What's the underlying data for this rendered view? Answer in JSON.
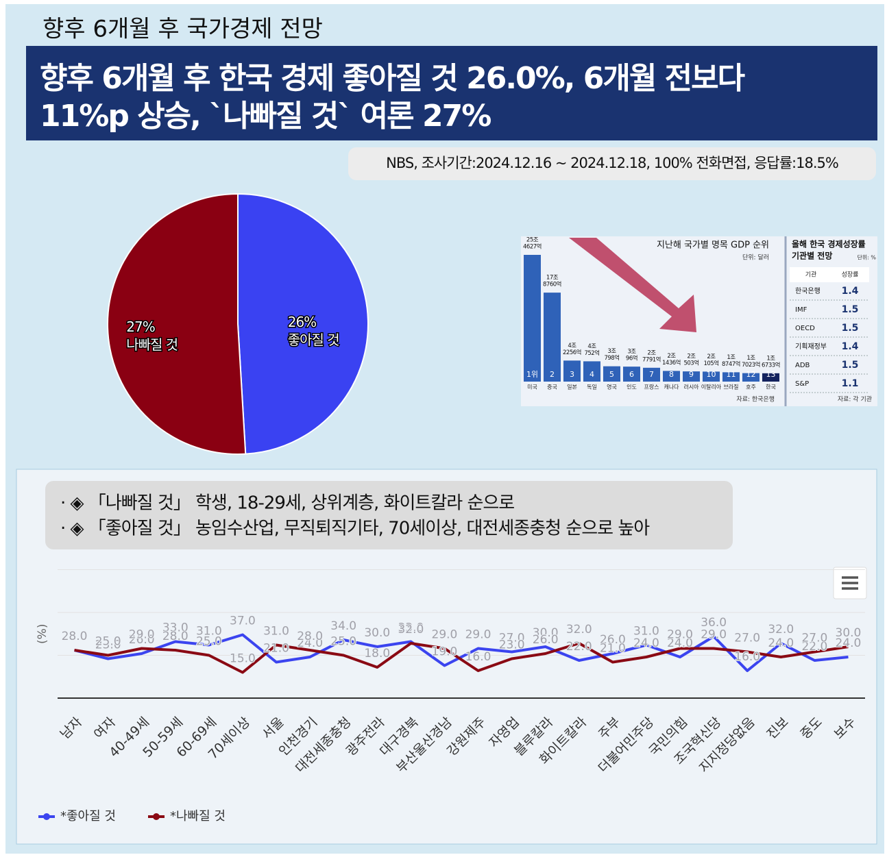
{
  "header": {
    "kicker": "향후 6개월 후 국가경제 전망",
    "headline": [
      "향후 6개월 후 한국 경제 좋아질 것 26.0%, 6개월 전보다",
      "11%p 상승, `나빠질 것` 여론 27%"
    ]
  },
  "source": "NBS, 조사기간:2024.12.16 ~ 2024.12.18, 100% 전화면접, 응답률:18.5%",
  "notes": [
    "· ◈ 「나빠질 것」 학생, 18-29세, 상위계층, 화이트칼라 순으로",
    "· ◈ 「좋아질 것」 농임수산업, 무직퇴직기타, 70세이상, 대전세종충청 순으로 높아"
  ],
  "chart_data": [
    {
      "type": "pie",
      "categories": [
        "좋아질 것",
        "나빠질 것"
      ],
      "values": [
        26,
        27
      ],
      "value_labels": [
        "26%",
        "27%"
      ],
      "colors": [
        "#3a42f2",
        "#8a0012"
      ]
    },
    {
      "type": "bar",
      "title": "지난해 국가별 명목 GDP 순위",
      "unit": "단위: 달러",
      "source": "자료: 한국은행",
      "categories": [
        "미국",
        "중국",
        "일본",
        "독일",
        "영국",
        "인도",
        "프랑스",
        "캐나다",
        "러시아",
        "이탈리아",
        "브라질",
        "호주",
        "한국"
      ],
      "ranks": [
        "1위",
        "2",
        "3",
        "4",
        "5",
        "6",
        "7",
        "8",
        "9",
        "10",
        "11",
        "12",
        "13"
      ],
      "values": [
        254627,
        178760,
        42256,
        40752,
        30798,
        30096,
        27791,
        21436,
        20503,
        20105,
        18747,
        17023,
        16733
      ],
      "value_labels": [
        [
          "25조",
          "4627억"
        ],
        [
          "17조",
          "8760억"
        ],
        [
          "4조",
          "2256억"
        ],
        [
          "4조",
          "752억"
        ],
        [
          "3조",
          "798억"
        ],
        [
          "3조",
          "96억"
        ],
        [
          "2조",
          "7791억"
        ],
        [
          "2조",
          "1436억"
        ],
        [
          "2조",
          "503억"
        ],
        [
          "2조",
          "105억"
        ],
        [
          "1조",
          "8747억"
        ],
        [
          "1조",
          "7023억"
        ],
        [
          "1조",
          "6733억"
        ]
      ],
      "colors": [
        "#2f62b8",
        "#2f62b8",
        "#2f62b8",
        "#2f62b8",
        "#2f62b8",
        "#2f62b8",
        "#2f62b8",
        "#2f62b8",
        "#2f62b8",
        "#2f62b8",
        "#2f62b8",
        "#2f62b8",
        "#14235e"
      ]
    },
    {
      "type": "line",
      "y_label": "(%)",
      "categories": [
        "남자",
        "여자",
        "40-49세",
        "50-59세",
        "60-69세",
        "70세이상",
        "서울",
        "인천경기",
        "대전세종충청",
        "광주전라",
        "대구경북",
        "부산울산경남",
        "강원제주",
        "자영업",
        "블루칼라",
        "화이트칼라",
        "주부",
        "더불어민주당",
        "국민의힘",
        "조국혁신당",
        "지지정당없음",
        "진보",
        "중도",
        "보수"
      ],
      "series": [
        {
          "name": "*좋아질 것",
          "color": "#3b44ef",
          "values": [
            28,
            23,
            26,
            33,
            31,
            37,
            21,
            24,
            34,
            30,
            33,
            19,
            29,
            27,
            30,
            22,
            26,
            31,
            24,
            36,
            16,
            32,
            22,
            24
          ],
          "value_labels": [
            "28.0",
            "23.0",
            "26.0",
            "33.0",
            "31.0",
            "37.0",
            "21.0",
            "24.0",
            "34.0",
            "30.0",
            "33.0",
            "19.0",
            "29.0",
            "27.0",
            "30.0",
            "22.0",
            "26.0",
            "31.0",
            "24.0",
            "36.0",
            "16.0",
            "32.0",
            "22.0",
            "24.0"
          ]
        },
        {
          "name": "*나빠질 것",
          "color": "#8a0a14",
          "values": [
            28,
            25,
            29,
            28,
            25,
            15,
            31,
            28,
            25,
            18,
            32,
            29,
            16,
            23,
            26,
            32,
            21,
            24,
            29,
            29,
            27,
            24,
            27,
            30
          ],
          "value_labels": [
            "28.0",
            "25.0",
            "29.0",
            "28.0",
            "25.0",
            "15.0",
            "31.0",
            "28.0",
            "25.0",
            "18.0",
            "32.0",
            "29.0",
            "16.0",
            "23.0",
            "26.0",
            "32.0",
            "21.0",
            "24.0",
            "29.0",
            "29.0",
            "27.0",
            "24.0",
            "27.0",
            "30.0"
          ]
        }
      ],
      "ylim": [
        0,
        75
      ],
      "yticks": [
        0,
        25,
        50,
        75
      ],
      "grid": true,
      "legend": "bottom-left"
    }
  ],
  "table": {
    "title": [
      "올해 한국 경제성장률",
      "기관별 전망"
    ],
    "unit": "단위: %",
    "columns": [
      "기관",
      "성장률"
    ],
    "rows": [
      [
        "한국은행",
        "1.4"
      ],
      [
        "IMF",
        "1.5"
      ],
      [
        "OECD",
        "1.5"
      ],
      [
        "기획재정부",
        "1.4"
      ],
      [
        "ADB",
        "1.5"
      ],
      [
        "S&P",
        "1.1"
      ]
    ],
    "source": "자료: 각 기관"
  }
}
